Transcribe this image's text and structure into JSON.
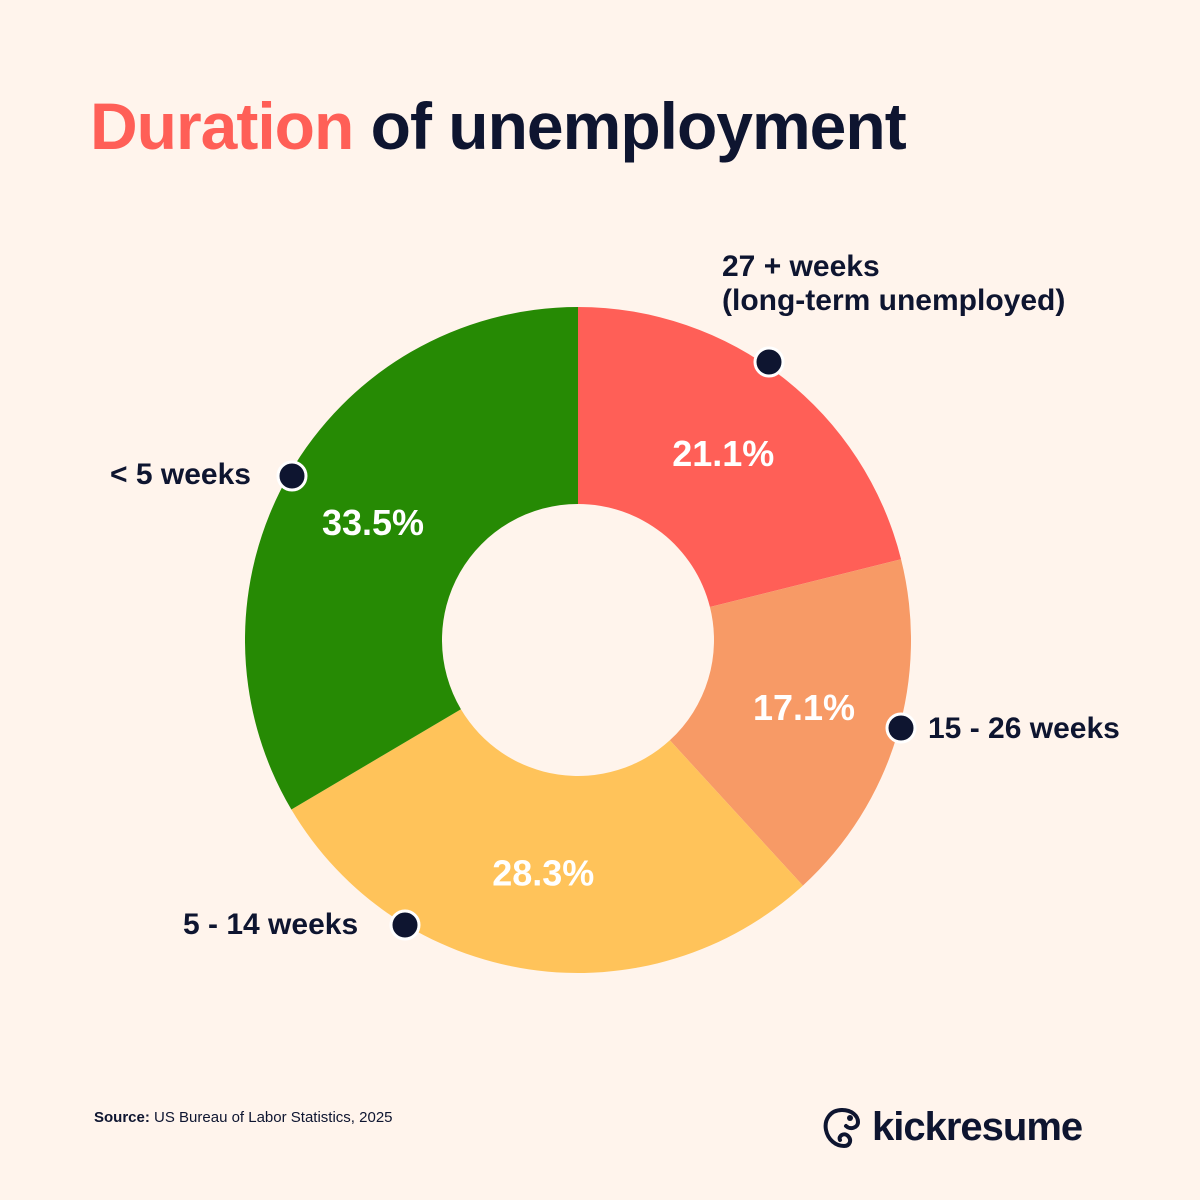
{
  "title": {
    "highlight": "Duration",
    "rest": "of unemployment"
  },
  "colors": {
    "background": "#FFF4EC",
    "text": "#0E1530",
    "accent": "#FF5F57"
  },
  "chart_data": {
    "type": "pie",
    "variant": "donut",
    "categories": [
      "27 + weeks (long-term unemployed)",
      "15 - 26 weeks",
      "5 - 14 weeks",
      "< 5 weeks"
    ],
    "values": [
      21.1,
      17.1,
      28.3,
      33.5
    ],
    "value_labels": [
      "21.1%",
      "17.1%",
      "28.3%",
      "33.5%"
    ],
    "colors": [
      "#FF5F57",
      "#F79A66",
      "#FFC35A",
      "#268A04"
    ],
    "start": "12 o'clock, clockwise"
  },
  "labels": {
    "long_term_line1": "27 + weeks",
    "long_term_line2": "(long-term unemployed)",
    "mid_term": "15 - 26 weeks",
    "short_mid": "5 - 14 weeks",
    "short": "< 5 weeks"
  },
  "source": {
    "label": "Source:",
    "text": "US Bureau of Labor Statistics, 2025"
  },
  "logo": {
    "text": "kickresume",
    "icon": "chameleon-icon"
  }
}
